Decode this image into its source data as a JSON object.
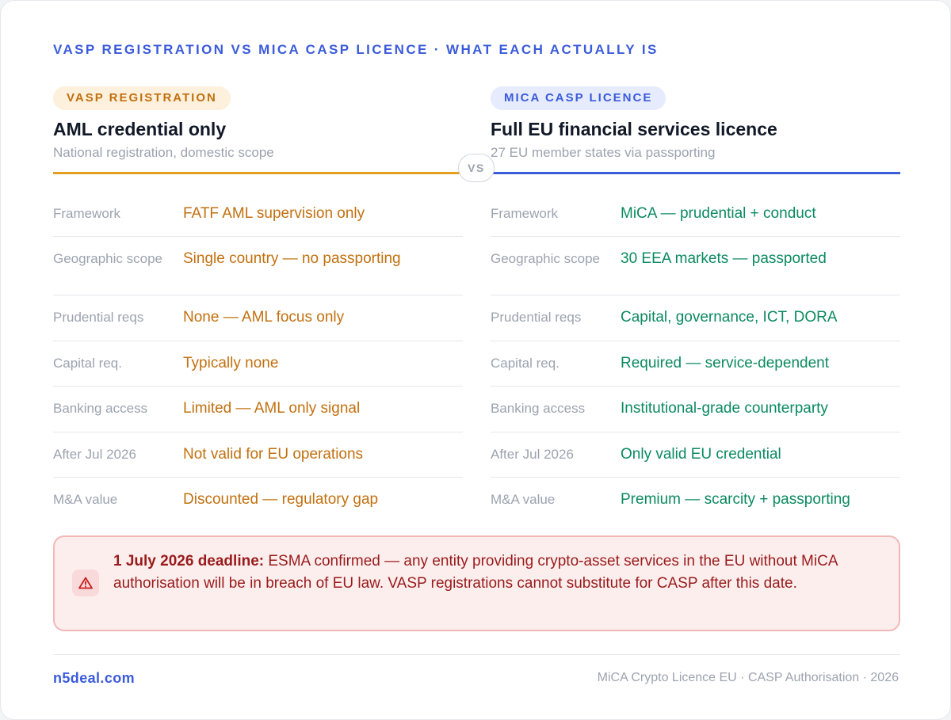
{
  "header": {
    "kicker": "VASP REGISTRATION VS MICA CASP LICENCE · WHAT EACH ACTUALLY IS"
  },
  "left": {
    "pill": "VASP REGISTRATION",
    "title": "AML credential only",
    "subtitle": "National registration, domestic scope",
    "accent_color": "#e3a020",
    "rows": [
      {
        "label": "Framework",
        "value": "FATF AML supervision only"
      },
      {
        "label": "Geographic scope",
        "value": "Single country — no passporting"
      },
      {
        "label": "Prudential reqs",
        "value": "None — AML focus only"
      },
      {
        "label": "Capital req.",
        "value": "Typically none"
      },
      {
        "label": "Banking access",
        "value": "Limited — AML only signal"
      },
      {
        "label": "After Jul 2026",
        "value": "Not valid for EU operations"
      },
      {
        "label": "M&A value",
        "value": "Discounted — regulatory gap"
      }
    ]
  },
  "divider": {
    "label": "VS"
  },
  "right": {
    "pill": "MICA CASP LICENCE",
    "title": "Full EU financial services licence",
    "subtitle": "27 EU member states via passporting",
    "accent_color": "#3b5bdb",
    "rows": [
      {
        "label": "Framework",
        "value": "MiCA — prudential + conduct"
      },
      {
        "label": "Geographic scope",
        "value": "30 EEA markets — passported"
      },
      {
        "label": "Prudential reqs",
        "value": "Capital, governance, ICT, DORA"
      },
      {
        "label": "Capital req.",
        "value": "Required — service-dependent"
      },
      {
        "label": "Banking access",
        "value": "Institutional-grade counterparty"
      },
      {
        "label": "After Jul 2026",
        "value": "Only valid EU credential"
      },
      {
        "label": "M&A value",
        "value": "Premium — scarcity + passporting"
      }
    ]
  },
  "alert": {
    "icon": "warning-icon",
    "lead": "1 July 2026 deadline:",
    "text": " ESMA confirmed — any entity providing crypto-asset services in the EU without MiCA authorisation will be in breach of EU law. VASP registrations cannot substitute for CASP after this date."
  },
  "footer": {
    "brand": "n5deal.com",
    "note": "MiCA Crypto Licence EU · CASP Authorisation · 2026"
  },
  "colors": {
    "vasp_accent": "#c2700f",
    "casp_accent": "#3b5bdb",
    "casp_value": "#0b8a5f",
    "alert_text": "#991b1b"
  }
}
